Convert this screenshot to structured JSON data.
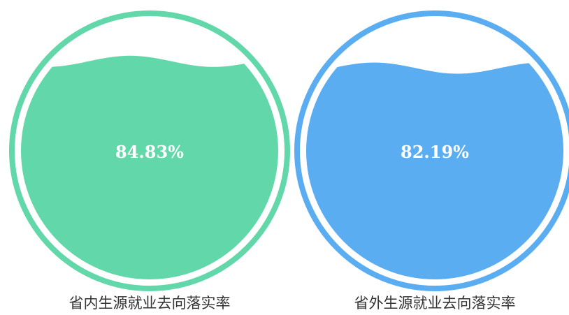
{
  "chart_data": [
    {
      "type": "liquid-fill",
      "value": 0.8483,
      "value_label": "84.83%",
      "caption": "省内生源就业去向落实率",
      "color": "#62D7AA"
    },
    {
      "type": "liquid-fill",
      "value": 0.8219,
      "value_label": "82.19%",
      "caption": "省外生源就业去向落实率",
      "color": "#5AADF0"
    }
  ]
}
